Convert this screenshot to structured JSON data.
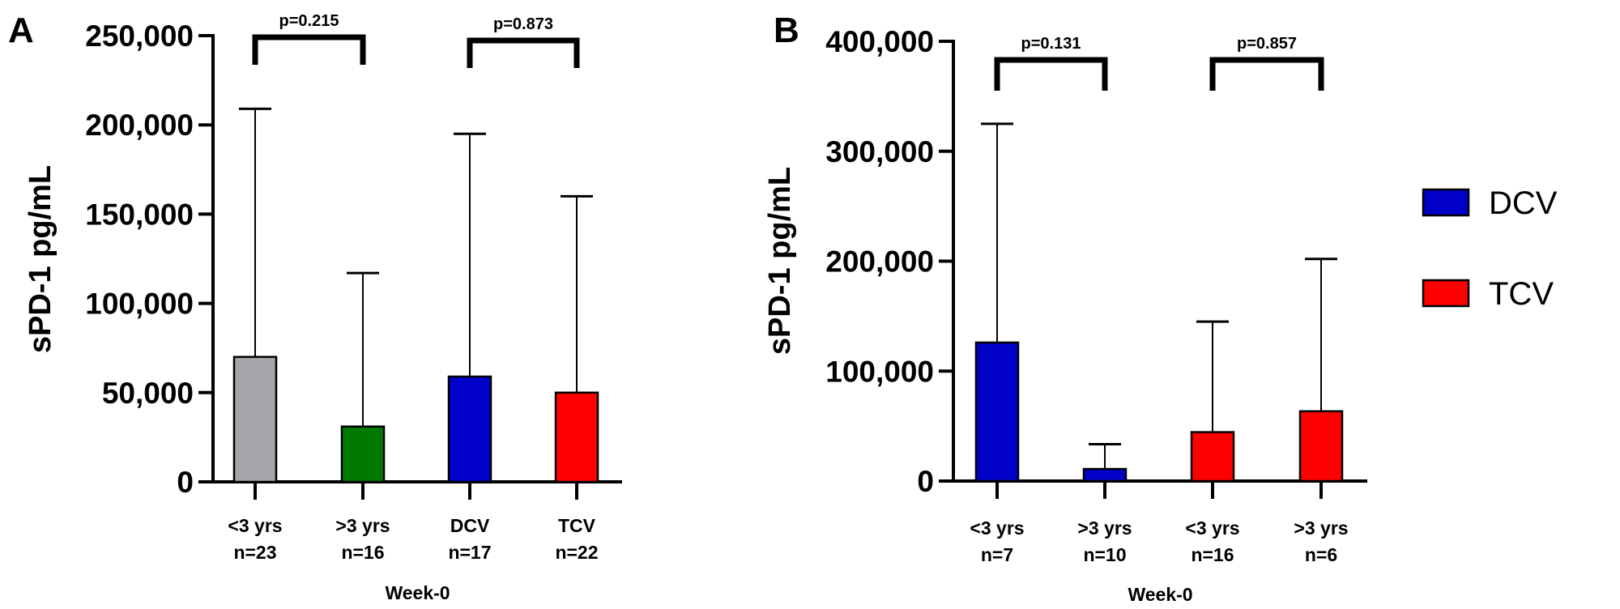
{
  "chart_data": [
    {
      "type": "bar",
      "panel_label": "A",
      "ylabel": "sPD-1 pg/mL",
      "xlabel": "Week-0",
      "ylim": [
        0,
        250000
      ],
      "yticks": [
        "0",
        "50,000",
        "100,000",
        "150,000",
        "200,000",
        "250,000"
      ],
      "ytick_values": [
        0,
        50000,
        100000,
        150000,
        200000,
        250000
      ],
      "grid": false,
      "categories": [
        {
          "line1": "<3 yrs",
          "line2": "n=23"
        },
        {
          "line1": ">3 yrs",
          "line2": "n=16"
        },
        {
          "line1": "DCV",
          "line2": "n=17"
        },
        {
          "line1": "TCV",
          "line2": "n=22"
        }
      ],
      "values": [
        70000,
        31000,
        59000,
        50000
      ],
      "error_upper": [
        209000,
        117000,
        195000,
        160000
      ],
      "colors": [
        "#a6a5aa",
        "#007a00",
        "#0000c8",
        "#ff0000"
      ],
      "comparisons": [
        {
          "from": 0,
          "to": 1,
          "label": "p=0.215"
        },
        {
          "from": 2,
          "to": 3,
          "label": "p=0.873"
        }
      ]
    },
    {
      "type": "bar",
      "panel_label": "B",
      "ylabel": "sPD-1 pg/mL",
      "xlabel": "Week-0",
      "ylim": [
        0,
        400000
      ],
      "yticks": [
        "0",
        "100,000",
        "200,000",
        "300,000",
        "400,000"
      ],
      "ytick_values": [
        0,
        100000,
        200000,
        300000,
        400000
      ],
      "grid": false,
      "categories": [
        {
          "line1": "<3 yrs",
          "line2": "n=7"
        },
        {
          "line1": ">3 yrs",
          "line2": "n=10"
        },
        {
          "line1": "<3 yrs",
          "line2": "n=16"
        },
        {
          "line1": ">3 yrs",
          "line2": "n=6"
        }
      ],
      "values": [
        126000,
        11000,
        44500,
        63500
      ],
      "error_upper": [
        325000,
        33500,
        145000,
        202000
      ],
      "colors": [
        "#0000c8",
        "#0000c8",
        "#ff0000",
        "#ff0000"
      ],
      "comparisons": [
        {
          "from": 0,
          "to": 1,
          "label": "p=0.131"
        },
        {
          "from": 2,
          "to": 3,
          "label": "p=0.857"
        }
      ],
      "legend": {
        "placement": "right",
        "items": [
          {
            "label": "DCV",
            "color": "#0000c8"
          },
          {
            "label": "TCV",
            "color": "#ff0000"
          }
        ]
      }
    }
  ]
}
